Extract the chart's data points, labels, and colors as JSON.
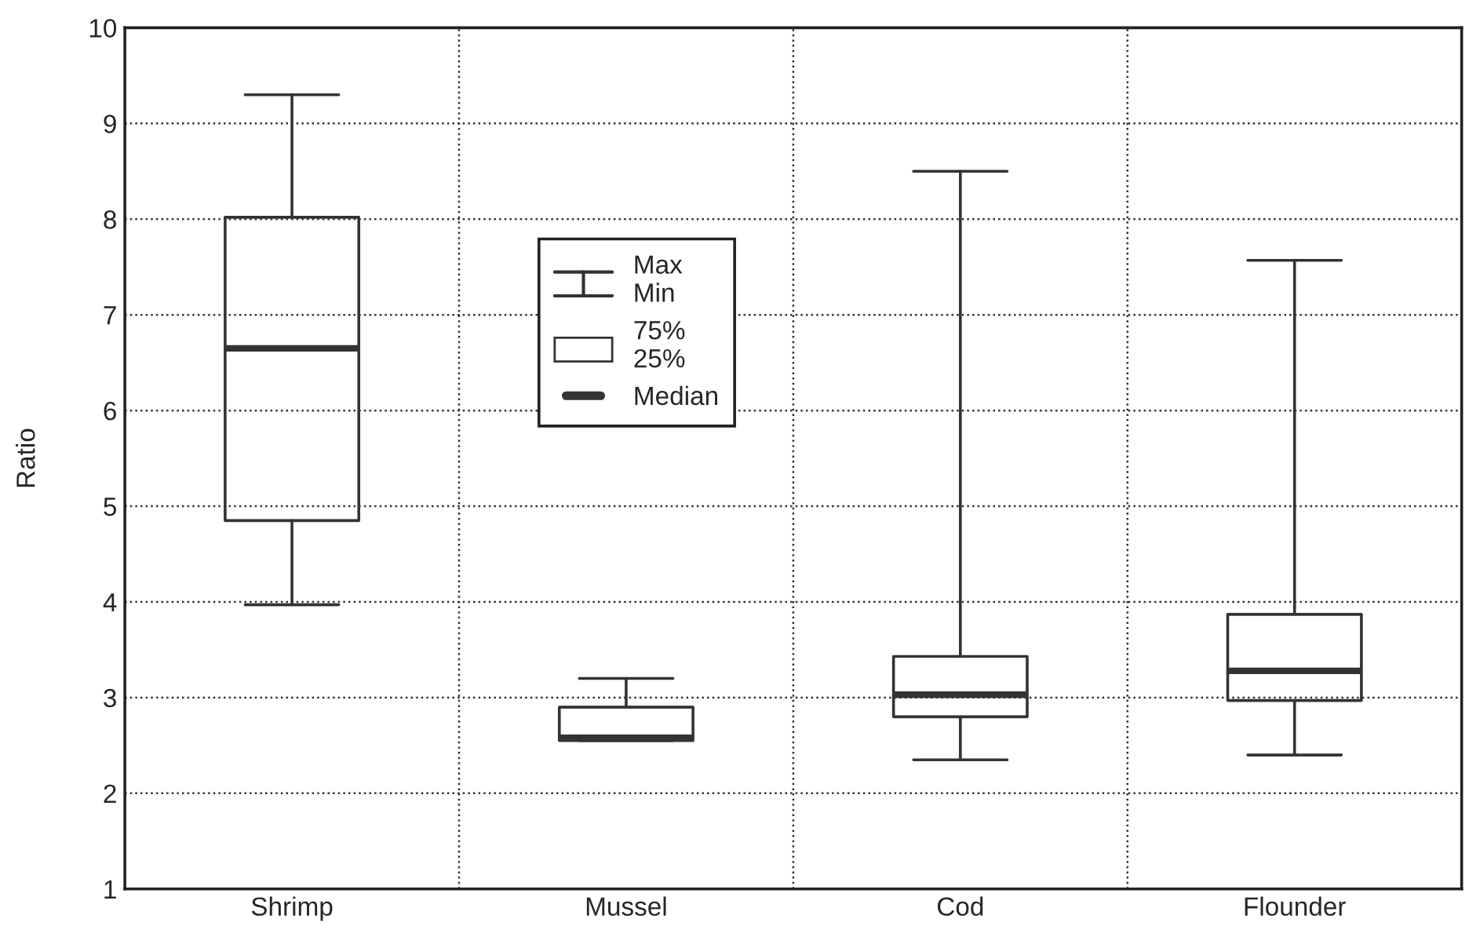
{
  "chart_data": {
    "type": "box",
    "ylabel": "Ratio",
    "categories": [
      "Shrimp",
      "Mussel",
      "Cod",
      "Flounder"
    ],
    "boxes": [
      {
        "low": 3.97,
        "q1": 4.85,
        "median": 6.65,
        "q3": 8.02,
        "high": 9.3
      },
      {
        "low": 2.55,
        "q1": 2.55,
        "median": 2.58,
        "q3": 2.9,
        "high": 3.2
      },
      {
        "low": 2.35,
        "q1": 2.8,
        "median": 3.03,
        "q3": 3.43,
        "high": 8.5
      },
      {
        "low": 2.4,
        "q1": 2.97,
        "median": 3.28,
        "q3": 3.87,
        "high": 7.57
      }
    ],
    "color": "#333333",
    "ylim": [
      1,
      10
    ],
    "yticks": [
      1,
      2,
      3,
      4,
      5,
      6,
      7,
      8,
      9,
      10
    ],
    "grid": true,
    "line_style": "dotted",
    "annotations": [
      "Max\nMin",
      "75%\n25%",
      "Median"
    ]
  }
}
